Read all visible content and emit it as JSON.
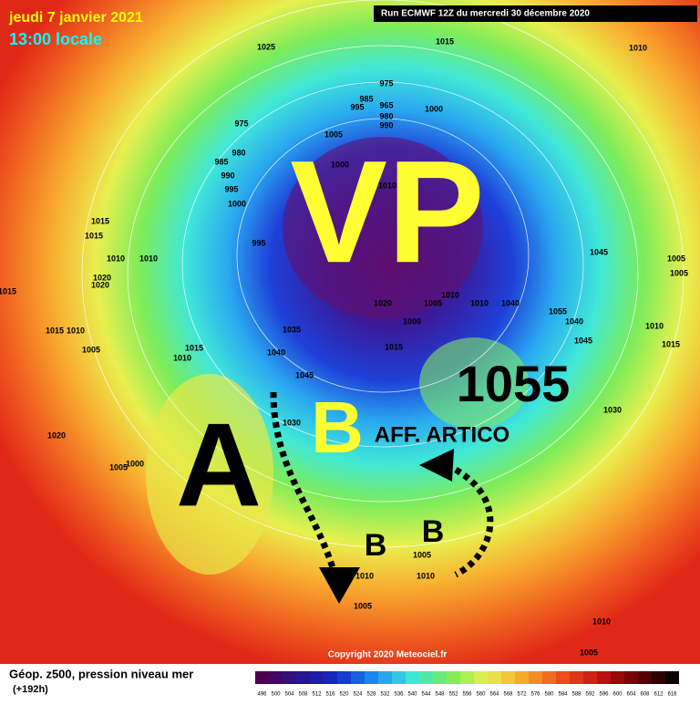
{
  "header": {
    "date": "jeudi 7 janvier 2021",
    "time": "13:00 locale",
    "run": "Run ECMWF 12Z du mercredi 30 décembre 2020"
  },
  "annotations": {
    "vortex": "VP",
    "high": "A",
    "low_main": "B",
    "low_1": "B",
    "low_2": "B",
    "pressure": "1055",
    "note": "AFF. ARTICO"
  },
  "pressure_labels": [
    1025,
    1015,
    1010,
    975,
    985,
    995,
    965,
    980,
    990,
    1000,
    975,
    980,
    985,
    990,
    995,
    1000,
    1005,
    1000,
    1010,
    995,
    1045,
    1005,
    1015,
    1015,
    1010,
    1010,
    1020,
    1020,
    1005,
    1015,
    1010,
    1015,
    1010,
    1035,
    1040,
    1045,
    1020,
    1005,
    1010,
    1010,
    1040,
    1000,
    1015,
    1055,
    1040,
    1045,
    1015,
    1005,
    1010,
    1030,
    1030,
    1005,
    1000,
    1020,
    1010,
    1005,
    1010,
    1005,
    1010,
    1005,
    1015
  ],
  "footer": {
    "field": "Géop. z500, pression niveau mer",
    "lead": "(+192h)",
    "copyright": "Copyright 2020 Meteociel.fr"
  },
  "scale": [
    496,
    500,
    504,
    508,
    512,
    516,
    520,
    524,
    528,
    532,
    536,
    540,
    544,
    548,
    552,
    556,
    560,
    564,
    568,
    572,
    576,
    580,
    584,
    588,
    592,
    596,
    600,
    604,
    608,
    612,
    616
  ]
}
